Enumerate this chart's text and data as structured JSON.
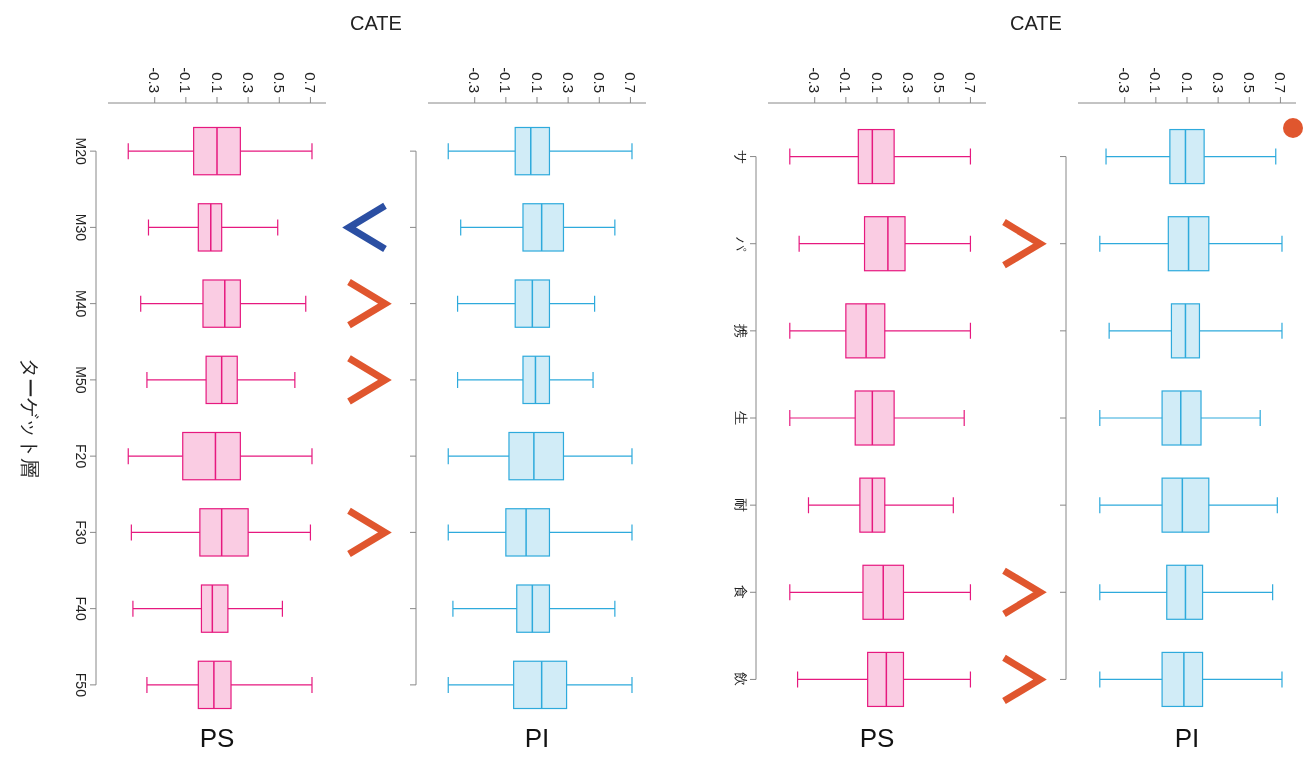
{
  "chart_data": [
    {
      "type": "box",
      "orientation": "horizontal",
      "title": "PS",
      "xlabel": "CATE",
      "ylabel": "ターゲット層",
      "categories": [
        "M20",
        "M30",
        "M40",
        "M50",
        "F20",
        "F30",
        "F40",
        "F50"
      ],
      "color": "#e6197f",
      "xlim": [
        -0.6,
        0.8
      ],
      "xticks": [
        -0.3,
        -0.1,
        0.1,
        0.3,
        0.5,
        0.7
      ],
      "boxes": [
        {
          "low": -0.47,
          "q1": -0.05,
          "median": 0.1,
          "q3": 0.25,
          "high": 0.71
        },
        {
          "low": -0.34,
          "q1": -0.02,
          "median": 0.06,
          "q3": 0.13,
          "high": 0.49
        },
        {
          "low": -0.39,
          "q1": 0.01,
          "median": 0.15,
          "q3": 0.25,
          "high": 0.67
        },
        {
          "low": -0.35,
          "q1": 0.03,
          "median": 0.13,
          "q3": 0.23,
          "high": 0.6
        },
        {
          "low": -0.47,
          "q1": -0.12,
          "median": 0.09,
          "q3": 0.25,
          "high": 0.71
        },
        {
          "low": -0.45,
          "q1": -0.01,
          "median": 0.13,
          "q3": 0.3,
          "high": 0.7
        },
        {
          "low": -0.44,
          "q1": 0,
          "median": 0.07,
          "q3": 0.17,
          "high": 0.52
        },
        {
          "low": -0.35,
          "q1": -0.02,
          "median": 0.08,
          "q3": 0.19,
          "high": 0.71
        }
      ]
    },
    {
      "type": "box",
      "orientation": "horizontal",
      "title": "PI",
      "categories": [
        null,
        null,
        null,
        null,
        null,
        null,
        null,
        null
      ],
      "color": "#2eaadc",
      "xlim": [
        -0.6,
        0.8
      ],
      "xticks": [
        -0.3,
        -0.1,
        0.1,
        0.3,
        0.5,
        0.7
      ],
      "boxes": [
        {
          "low": -0.47,
          "q1": -0.04,
          "median": 0.06,
          "q3": 0.18,
          "high": 0.71
        },
        {
          "low": -0.39,
          "q1": 0.01,
          "median": 0.13,
          "q3": 0.27,
          "high": 0.6
        },
        {
          "low": -0.41,
          "q1": -0.04,
          "median": 0.07,
          "q3": 0.18,
          "high": 0.47
        },
        {
          "low": -0.41,
          "q1": 0.01,
          "median": 0.09,
          "q3": 0.18,
          "high": 0.46
        },
        {
          "low": -0.47,
          "q1": -0.08,
          "median": 0.08,
          "q3": 0.27,
          "high": 0.71
        },
        {
          "low": -0.47,
          "q1": -0.1,
          "median": 0.03,
          "q3": 0.18,
          "high": 0.71
        },
        {
          "low": -0.44,
          "q1": -0.03,
          "median": 0.07,
          "q3": 0.18,
          "high": 0.6
        },
        {
          "low": -0.47,
          "q1": -0.05,
          "median": 0.13,
          "q3": 0.29,
          "high": 0.71
        }
      ]
    },
    {
      "type": "box",
      "orientation": "horizontal",
      "title": "PS",
      "xlabel": "CATE",
      "categories": [
        "サ",
        "パ",
        "携",
        "生",
        "耐",
        "食",
        "飲"
      ],
      "color": "#e6197f",
      "xlim": [
        -0.6,
        0.8
      ],
      "xticks": [
        -0.3,
        -0.1,
        0.1,
        0.3,
        0.5,
        0.7
      ],
      "boxes": [
        {
          "low": -0.46,
          "q1": -0.02,
          "median": 0.07,
          "q3": 0.21,
          "high": 0.7
        },
        {
          "low": -0.4,
          "q1": 0.02,
          "median": 0.17,
          "q3": 0.28,
          "high": 0.7
        },
        {
          "low": -0.46,
          "q1": -0.1,
          "median": 0.03,
          "q3": 0.15,
          "high": 0.7
        },
        {
          "low": -0.46,
          "q1": -0.04,
          "median": 0.07,
          "q3": 0.21,
          "high": 0.66
        },
        {
          "low": -0.34,
          "q1": -0.01,
          "median": 0.07,
          "q3": 0.15,
          "high": 0.59
        },
        {
          "low": -0.46,
          "q1": 0.01,
          "median": 0.14,
          "q3": 0.27,
          "high": 0.7
        },
        {
          "low": -0.41,
          "q1": 0.04,
          "median": 0.16,
          "q3": 0.27,
          "high": 0.7
        }
      ]
    },
    {
      "type": "box",
      "orientation": "horizontal",
      "title": "PI",
      "categories": [
        null,
        null,
        null,
        null,
        null,
        null,
        null
      ],
      "color": "#2eaadc",
      "xlim": [
        -0.6,
        0.8
      ],
      "xticks": [
        -0.3,
        -0.1,
        0.1,
        0.3,
        0.5,
        0.7
      ],
      "boxes": [
        {
          "low": -0.42,
          "q1": -0.01,
          "median": 0.09,
          "q3": 0.21,
          "high": 0.67
        },
        {
          "low": -0.46,
          "q1": -0.02,
          "median": 0.11,
          "q3": 0.24,
          "high": 0.71
        },
        {
          "low": -0.4,
          "q1": 0,
          "median": 0.09,
          "q3": 0.18,
          "high": 0.71
        },
        {
          "low": -0.46,
          "q1": -0.06,
          "median": 0.06,
          "q3": 0.19,
          "high": 0.57
        },
        {
          "low": -0.46,
          "q1": -0.06,
          "median": 0.07,
          "q3": 0.24,
          "high": 0.68
        },
        {
          "low": -0.46,
          "q1": -0.03,
          "median": 0.09,
          "q3": 0.2,
          "high": 0.65
        },
        {
          "low": -0.46,
          "q1": -0.06,
          "median": 0.08,
          "q3": 0.2,
          "high": 0.71
        }
      ]
    }
  ]
}
